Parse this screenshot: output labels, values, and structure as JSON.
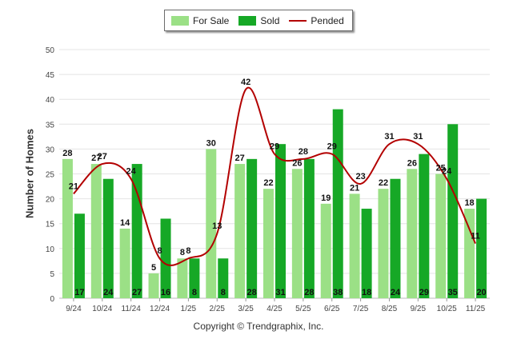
{
  "legend": {
    "for_sale": "For Sale",
    "sold": "Sold",
    "pended": "Pended"
  },
  "copyright": "Copyright © Trendgraphix, Inc.",
  "colors": {
    "for_sale": "#9be086",
    "sold": "#16a826",
    "pended": "#b30000"
  },
  "chart_data": {
    "type": "bar",
    "ylabel": "Number of Homes",
    "ylim": [
      0,
      50
    ],
    "yticks": [
      0,
      5,
      10,
      15,
      20,
      25,
      30,
      35,
      40,
      45,
      50
    ],
    "grid": true,
    "legend_position": "top-center",
    "categories": [
      "9/24",
      "10/24",
      "11/24",
      "12/24",
      "1/25",
      "2/25",
      "3/25",
      "4/25",
      "5/25",
      "6/25",
      "7/25",
      "8/25",
      "9/25",
      "10/25",
      "11/25"
    ],
    "series": [
      {
        "name": "For Sale",
        "type": "bar",
        "values": [
          28,
          27,
          14,
          5,
          8,
          30,
          27,
          22,
          26,
          19,
          21,
          22,
          26,
          25,
          18
        ]
      },
      {
        "name": "Sold",
        "type": "bar",
        "values": [
          17,
          24,
          27,
          16,
          8,
          8,
          28,
          31,
          28,
          38,
          18,
          24,
          29,
          35,
          20
        ]
      },
      {
        "name": "Pended",
        "type": "line",
        "values": [
          21,
          27,
          24,
          8,
          8,
          13,
          42,
          29,
          28,
          29,
          23,
          31,
          31,
          24,
          11
        ]
      }
    ]
  }
}
